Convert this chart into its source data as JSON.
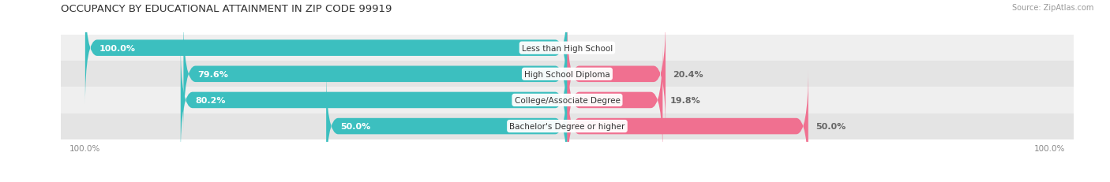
{
  "title": "OCCUPANCY BY EDUCATIONAL ATTAINMENT IN ZIP CODE 99919",
  "source": "Source: ZipAtlas.com",
  "categories": [
    "Less than High School",
    "High School Diploma",
    "College/Associate Degree",
    "Bachelor's Degree or higher"
  ],
  "owner_values": [
    100.0,
    79.6,
    80.2,
    50.0
  ],
  "renter_values": [
    0.0,
    20.4,
    19.8,
    50.0
  ],
  "owner_color": "#3cbfbf",
  "renter_color": "#f07090",
  "row_bg_odd": "#efefef",
  "row_bg_even": "#e4e4e4",
  "title_fontsize": 9.5,
  "label_fontsize": 8,
  "cat_fontsize": 7.5,
  "tick_fontsize": 7.5,
  "figsize": [
    14.06,
    2.32
  ],
  "dpi": 100,
  "xlim_left": -105,
  "xlim_right": 105
}
